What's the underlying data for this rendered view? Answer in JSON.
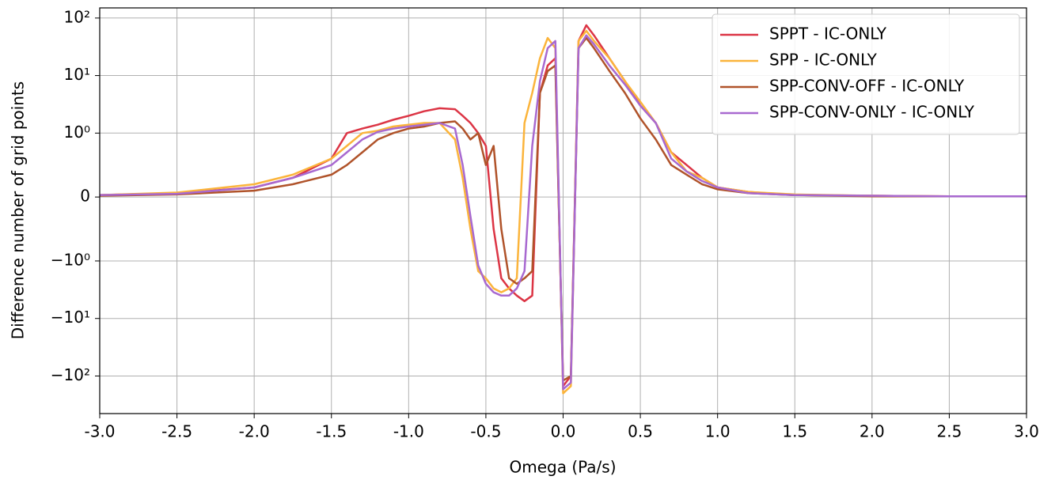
{
  "chart_data": {
    "type": "line",
    "xlabel": "Omega (Pa/s)",
    "ylabel": "Difference number of grid points",
    "yscale": "symlog",
    "grid": true,
    "legend": "upper right",
    "x": [
      -3,
      -2.5,
      -2,
      -1.75,
      -1.5,
      -1.4,
      -1.3,
      -1.2,
      -1.1,
      -1.0,
      -0.9,
      -0.8,
      -0.7,
      -0.65,
      -0.6,
      -0.55,
      -0.5,
      -0.45,
      -0.4,
      -0.35,
      -0.3,
      -0.25,
      -0.2,
      -0.15,
      -0.1,
      -0.05,
      0,
      0.05,
      0.1,
      0.15,
      0.2,
      0.3,
      0.4,
      0.5,
      0.6,
      0.7,
      0.8,
      0.9,
      1.0,
      1.2,
      1.5,
      2,
      2.5,
      3
    ],
    "series": [
      {
        "name": "SPPT - IC-ONLY",
        "color": "#dc3545",
        "values": [
          0.03,
          0.06,
          0.15,
          0.3,
          0.6,
          1.0,
          1.2,
          1.4,
          1.7,
          2.0,
          2.4,
          2.7,
          2.6,
          2.0,
          1.5,
          1.0,
          0.8,
          -0.5,
          -2,
          -3,
          -4,
          -5,
          -4,
          5,
          15,
          20,
          -150,
          -100,
          40,
          75,
          50,
          20,
          8,
          3,
          1.5,
          0.7,
          0.5,
          0.3,
          0.15,
          0.08,
          0.03,
          0.02,
          0.01,
          0.01
        ]
      },
      {
        "name": "SPP - IC-ONLY",
        "color": "#fbb43b",
        "values": [
          0.03,
          0.07,
          0.2,
          0.35,
          0.6,
          0.8,
          1.0,
          1.1,
          1.3,
          1.4,
          1.5,
          1.5,
          0.9,
          0.3,
          -0.5,
          -1.5,
          -2,
          -3,
          -3.5,
          -3,
          -2,
          1.5,
          5,
          20,
          45,
          30,
          -200,
          -150,
          40,
          60,
          40,
          20,
          8,
          3.5,
          1.5,
          0.7,
          0.4,
          0.3,
          0.15,
          0.08,
          0.04,
          0.02,
          0.01,
          0.01
        ]
      },
      {
        "name": "SPP-CONV-OFF - IC-ONLY",
        "color": "#b0532a",
        "values": [
          0.02,
          0.04,
          0.1,
          0.2,
          0.35,
          0.5,
          0.7,
          0.9,
          1.0,
          1.2,
          1.3,
          1.5,
          1.6,
          1.2,
          0.9,
          1.0,
          0.5,
          0.8,
          -0.5,
          -2,
          -2.5,
          -2,
          -1.5,
          5,
          12,
          15,
          -120,
          -100,
          30,
          45,
          30,
          12,
          5,
          1.8,
          0.9,
          0.5,
          0.35,
          0.2,
          0.12,
          0.06,
          0.03,
          0.01,
          0.01,
          0.01
        ]
      },
      {
        "name": "SPP-CONV-ONLY - IC-ONLY",
        "color": "#a869d0",
        "values": [
          0.03,
          0.05,
          0.15,
          0.3,
          0.5,
          0.7,
          0.9,
          1.05,
          1.2,
          1.3,
          1.4,
          1.5,
          1.2,
          0.5,
          -0.3,
          -1.2,
          -2.5,
          -3.5,
          -4,
          -4,
          -3,
          -1.5,
          0.8,
          8,
          30,
          40,
          -170,
          -130,
          30,
          50,
          35,
          15,
          7,
          3,
          1.5,
          0.6,
          0.4,
          0.25,
          0.15,
          0.06,
          0.03,
          0.02,
          0.01,
          0.01
        ]
      }
    ],
    "xlim": [
      -3,
      3
    ],
    "xticks": [
      {
        "value": -3,
        "label": "-3.0"
      },
      {
        "value": -2.5,
        "label": "-2.5"
      },
      {
        "value": -2,
        "label": "-2.0"
      },
      {
        "value": -1.5,
        "label": "-1.5"
      },
      {
        "value": -1,
        "label": "-1.0"
      },
      {
        "value": -0.5,
        "label": "-0.5"
      },
      {
        "value": 0,
        "label": "0.0"
      },
      {
        "value": 0.5,
        "label": "0.5"
      },
      {
        "value": 1,
        "label": "1.0"
      },
      {
        "value": 1.5,
        "label": "1.5"
      },
      {
        "value": 2,
        "label": "2.0"
      },
      {
        "value": 2.5,
        "label": "2.5"
      },
      {
        "value": 3,
        "label": "3.0"
      }
    ],
    "ylim": [
      -450,
      150
    ],
    "yticks": [
      {
        "value": -100,
        "label": "−10²"
      },
      {
        "value": -10,
        "label": "−10¹"
      },
      {
        "value": -1,
        "label": "−10⁰"
      },
      0,
      {
        "value": 1,
        "label": "10⁰"
      },
      {
        "value": 10,
        "label": "10¹"
      },
      {
        "value": 100,
        "label": "10²"
      }
    ]
  }
}
